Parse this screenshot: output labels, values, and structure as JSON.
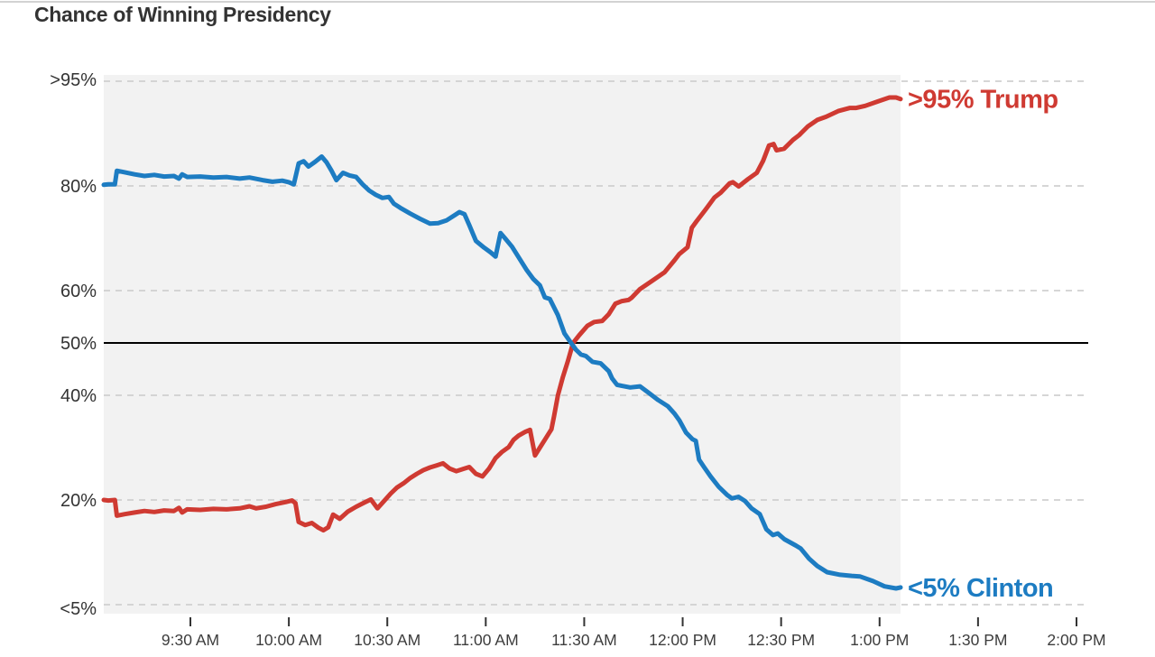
{
  "title": "Chance of Winning Presidency",
  "colors": {
    "trump_red": "#cf3a32",
    "clinton_blue": "#1d7cc2",
    "plot_background": "#f2f2f2",
    "gridline_gray": "#c9c9c9",
    "fifty_line_black": "#000000",
    "axis_text": "#3d3d3d",
    "title_text": "#333333"
  },
  "chart_data": {
    "type": "line",
    "title": "Chance of Winning Presidency",
    "xlabel": "",
    "ylabel": "",
    "grid": "dashed horizontal, solid black line at 50%",
    "legend_position": "line-end labels at right",
    "x_axis": {
      "unit": "minutes since 9:00 AM",
      "range_minutes": [
        3.6,
        300
      ],
      "tick_minutes": [
        30,
        60,
        90,
        120,
        150,
        180,
        210,
        240,
        270,
        300
      ],
      "tick_labels": [
        "9:30 AM",
        "10:00 AM",
        "10:30 AM",
        "11:00 AM",
        "11:30 AM",
        "12:00 PM",
        "12:30 PM",
        "1:00 PM",
        "1:30 PM",
        "2:00 PM"
      ]
    },
    "y_axis": {
      "range": [
        0,
        100
      ],
      "tick_values": [
        100,
        80,
        60,
        50,
        40,
        20,
        0
      ],
      "tick_labels": [
        ">95%",
        "80%",
        "60%",
        "50%",
        "40%",
        "20%",
        "<5%"
      ],
      "emphasized_value": 50
    },
    "series": [
      {
        "name": "Trump",
        "end_label": ">95% Trump",
        "color": "#cf3a32",
        "points": [
          [
            3.6,
            20.0
          ],
          [
            5,
            19.9
          ],
          [
            7,
            20.0
          ],
          [
            7.6,
            17.0
          ],
          [
            10,
            17.3
          ],
          [
            13,
            17.6
          ],
          [
            16,
            17.9
          ],
          [
            19,
            17.7
          ],
          [
            22,
            18.0
          ],
          [
            25,
            17.9
          ],
          [
            26.5,
            18.5
          ],
          [
            27.5,
            17.6
          ],
          [
            29,
            18.2
          ],
          [
            33,
            18.1
          ],
          [
            37,
            18.3
          ],
          [
            41,
            18.2
          ],
          [
            45,
            18.4
          ],
          [
            48,
            18.8
          ],
          [
            50,
            18.4
          ],
          [
            53,
            18.7
          ],
          [
            56,
            19.2
          ],
          [
            59,
            19.6
          ],
          [
            61,
            19.9
          ],
          [
            62,
            19.4
          ],
          [
            63,
            15.8
          ],
          [
            65,
            15.2
          ],
          [
            67,
            15.6
          ],
          [
            69,
            14.7
          ],
          [
            70.5,
            14.2
          ],
          [
            72,
            14.8
          ],
          [
            73.5,
            17.2
          ],
          [
            75.5,
            16.4
          ],
          [
            78,
            17.8
          ],
          [
            80.5,
            18.7
          ],
          [
            83,
            19.5
          ],
          [
            85,
            20.1
          ],
          [
            87,
            18.4
          ],
          [
            89,
            19.8
          ],
          [
            91,
            21.2
          ],
          [
            93,
            22.4
          ],
          [
            95,
            23.2
          ],
          [
            97,
            24.2
          ],
          [
            99,
            25.0
          ],
          [
            101,
            25.7
          ],
          [
            103,
            26.2
          ],
          [
            105,
            26.6
          ],
          [
            107,
            27.0
          ],
          [
            109,
            26.0
          ],
          [
            111,
            25.5
          ],
          [
            113,
            25.9
          ],
          [
            115,
            26.3
          ],
          [
            117,
            25.0
          ],
          [
            119,
            24.5
          ],
          [
            121,
            26.0
          ],
          [
            123,
            28.0
          ],
          [
            125,
            29.2
          ],
          [
            127,
            30.1
          ],
          [
            128.5,
            31.5
          ],
          [
            130,
            32.3
          ],
          [
            132,
            33.0
          ],
          [
            133.5,
            33.4
          ],
          [
            135,
            28.5
          ],
          [
            136.5,
            30.0
          ],
          [
            138,
            31.5
          ],
          [
            140,
            33.5
          ],
          [
            140.8,
            36.0
          ],
          [
            142,
            40.0
          ],
          [
            143.5,
            43.5
          ],
          [
            145,
            46.5
          ],
          [
            146.6,
            50.0
          ],
          [
            148.5,
            51.5
          ],
          [
            151,
            53.3
          ],
          [
            153,
            54.0
          ],
          [
            155.5,
            54.2
          ],
          [
            157.5,
            55.5
          ],
          [
            159.5,
            57.5
          ],
          [
            161.5,
            58.0
          ],
          [
            163.5,
            58.2
          ],
          [
            164.4,
            58.6
          ],
          [
            167,
            60.3
          ],
          [
            171,
            62.0
          ],
          [
            174.5,
            63.5
          ],
          [
            177.5,
            65.8
          ],
          [
            179,
            67.0
          ],
          [
            181.5,
            68.3
          ],
          [
            182.8,
            72.0
          ],
          [
            184.2,
            73.2
          ],
          [
            187,
            75.5
          ],
          [
            189.7,
            77.8
          ],
          [
            191.6,
            78.7
          ],
          [
            194.3,
            80.5
          ],
          [
            195.3,
            80.7
          ],
          [
            197.1,
            79.9
          ],
          [
            199.9,
            81.3
          ],
          [
            202.6,
            82.5
          ],
          [
            204.5,
            84.8
          ],
          [
            206.3,
            87.7
          ],
          [
            207.7,
            88.0
          ],
          [
            208.6,
            86.8
          ],
          [
            210.9,
            87.1
          ],
          [
            213.6,
            88.8
          ],
          [
            215.5,
            89.7
          ],
          [
            218.2,
            91.4
          ],
          [
            221,
            92.6
          ],
          [
            223.7,
            93.2
          ],
          [
            227.4,
            94.3
          ],
          [
            231,
            94.9
          ],
          [
            232.9,
            94.9
          ],
          [
            235.6,
            95.3
          ],
          [
            239.3,
            96.1
          ],
          [
            243,
            96.9
          ],
          [
            245,
            96.9
          ],
          [
            246.4,
            96.6
          ]
        ]
      },
      {
        "name": "Clinton",
        "end_label": "<5% Clinton",
        "color": "#1d7cc2",
        "points": [
          [
            3.6,
            80.2
          ],
          [
            5,
            80.3
          ],
          [
            7,
            80.3
          ],
          [
            7.6,
            82.9
          ],
          [
            10,
            82.6
          ],
          [
            13,
            82.2
          ],
          [
            16,
            81.9
          ],
          [
            19,
            82.1
          ],
          [
            22,
            81.8
          ],
          [
            25,
            81.9
          ],
          [
            26.5,
            81.4
          ],
          [
            27.5,
            82.2
          ],
          [
            29,
            81.7
          ],
          [
            33,
            81.8
          ],
          [
            37,
            81.6
          ],
          [
            41,
            81.7
          ],
          [
            45,
            81.4
          ],
          [
            48,
            81.6
          ],
          [
            52,
            81.1
          ],
          [
            55,
            80.8
          ],
          [
            58,
            81.0
          ],
          [
            60,
            80.7
          ],
          [
            61.5,
            80.3
          ],
          [
            63,
            84.3
          ],
          [
            64.5,
            84.7
          ],
          [
            66,
            83.7
          ],
          [
            68,
            84.6
          ],
          [
            70,
            85.6
          ],
          [
            71.5,
            84.5
          ],
          [
            73,
            82.9
          ],
          [
            74.5,
            81.1
          ],
          [
            76.5,
            82.5
          ],
          [
            78.5,
            82.0
          ],
          [
            80.5,
            81.7
          ],
          [
            82.5,
            80.3
          ],
          [
            84.5,
            79.1
          ],
          [
            86.5,
            78.3
          ],
          [
            88.5,
            77.7
          ],
          [
            90.5,
            77.9
          ],
          [
            92,
            76.6
          ],
          [
            94,
            75.8
          ],
          [
            97,
            74.7
          ],
          [
            100,
            73.7
          ],
          [
            103,
            72.8
          ],
          [
            105.5,
            72.9
          ],
          [
            108,
            73.4
          ],
          [
            110.5,
            74.4
          ],
          [
            112,
            75.0
          ],
          [
            113.5,
            74.6
          ],
          [
            115,
            72.5
          ],
          [
            117,
            69.5
          ],
          [
            119.5,
            68.2
          ],
          [
            121.5,
            67.3
          ],
          [
            123,
            66.5
          ],
          [
            124.5,
            71.0
          ],
          [
            126,
            69.9
          ],
          [
            128,
            68.4
          ],
          [
            130.5,
            65.9
          ],
          [
            132.5,
            63.9
          ],
          [
            134.5,
            62.2
          ],
          [
            136.5,
            61.0
          ],
          [
            138,
            58.7
          ],
          [
            139.5,
            58.4
          ],
          [
            142,
            55.3
          ],
          [
            144,
            51.8
          ],
          [
            146,
            50.0
          ],
          [
            147.5,
            48.7
          ],
          [
            149,
            47.8
          ],
          [
            150.5,
            47.5
          ],
          [
            152.5,
            46.4
          ],
          [
            155,
            46.1
          ],
          [
            157.5,
            44.6
          ],
          [
            158.5,
            43.2
          ],
          [
            160,
            42.0
          ],
          [
            161.5,
            41.8
          ],
          [
            164,
            41.5
          ],
          [
            167,
            41.7
          ],
          [
            170,
            40.3
          ],
          [
            172.5,
            39.1
          ],
          [
            175.5,
            37.9
          ],
          [
            177.5,
            36.5
          ],
          [
            179,
            35.2
          ],
          [
            181,
            32.9
          ],
          [
            183,
            31.6
          ],
          [
            184,
            31.3
          ],
          [
            185,
            27.7
          ],
          [
            186.5,
            26.3
          ],
          [
            188.5,
            24.5
          ],
          [
            191,
            22.5
          ],
          [
            193.5,
            21.0
          ],
          [
            195,
            20.3
          ],
          [
            197,
            20.6
          ],
          [
            199,
            19.8
          ],
          [
            201,
            18.4
          ],
          [
            203.5,
            17.3
          ],
          [
            205.5,
            14.4
          ],
          [
            207.5,
            13.3
          ],
          [
            209,
            13.6
          ],
          [
            211,
            12.5
          ],
          [
            214.5,
            11.3
          ],
          [
            216,
            10.7
          ],
          [
            218.5,
            8.8
          ],
          [
            221,
            7.4
          ],
          [
            224,
            6.2
          ],
          [
            228,
            5.7
          ],
          [
            231.5,
            5.5
          ],
          [
            234,
            5.4
          ],
          [
            238,
            4.5
          ],
          [
            241.5,
            3.5
          ],
          [
            245,
            3.1
          ],
          [
            246.4,
            3.3
          ]
        ]
      }
    ]
  }
}
